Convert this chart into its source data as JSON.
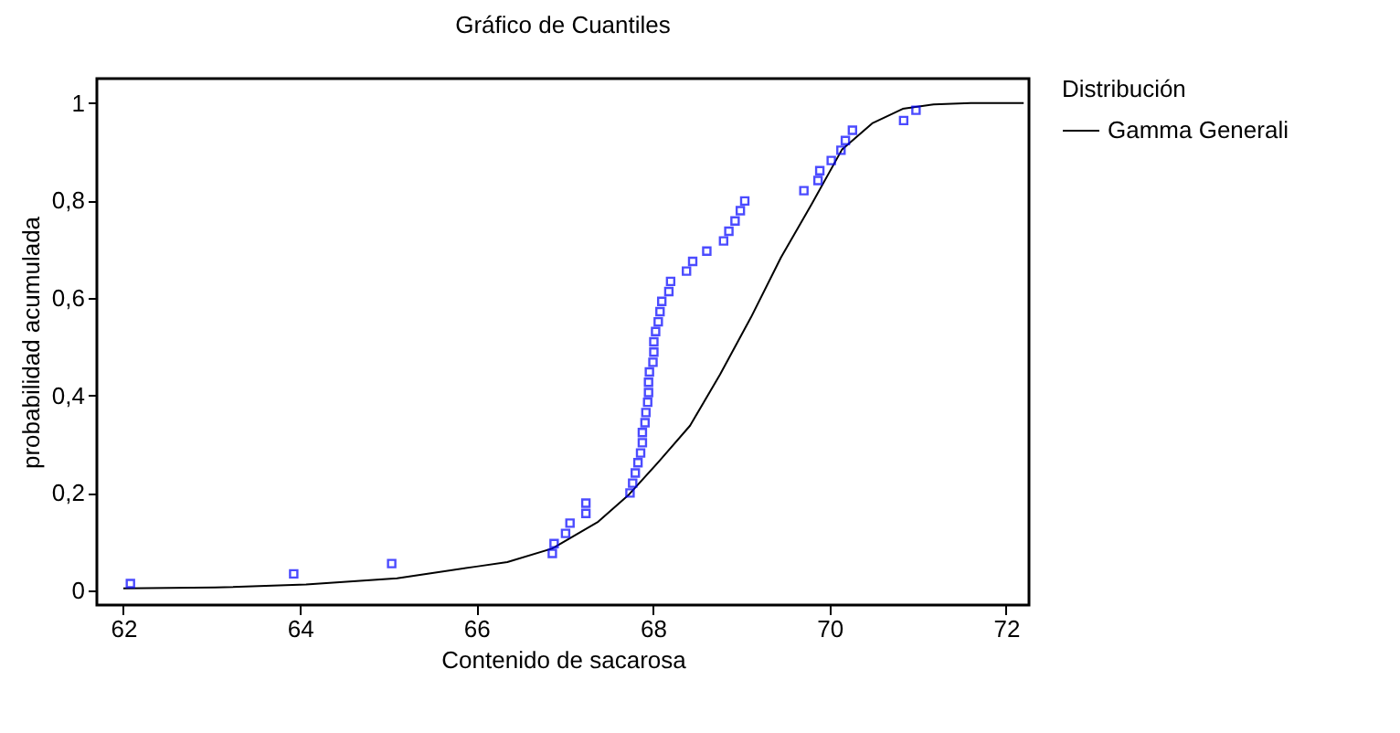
{
  "chart_data": {
    "type": "scatter",
    "title": "Gráfico de Cuantiles",
    "xlabel": "Contenido de sacarosa",
    "ylabel": "probabilidad acumulada",
    "legend_title": "Distribución",
    "legend": "right",
    "grid": false,
    "xlim": [
      61.7,
      72.26
    ],
    "ylim": [
      -0.03,
      1.05
    ],
    "xticks": [
      62,
      64,
      66,
      68,
      70,
      72
    ],
    "yticks": [
      0,
      {
        "value": 0.2,
        "label": "0,2"
      },
      {
        "value": 0.4,
        "label": "0,4"
      },
      {
        "value": 0.6,
        "label": "0,6"
      },
      {
        "value": 0.8,
        "label": "0,8"
      },
      1
    ],
    "series": [
      {
        "name": "Gamma Generali",
        "type": "line",
        "color": "#000000",
        "line_style": "solid",
        "marker": "none",
        "x": [
          62,
          63.04,
          64.07,
          65.1,
          66,
          66.35,
          66.86,
          67.38,
          67.73,
          68.07,
          68.42,
          68.76,
          69.11,
          69.45,
          69.8,
          70.14,
          70.49,
          70.83,
          71.18,
          71.6,
          72.2
        ],
        "values": [
          0.004,
          0.006,
          0.012,
          0.025,
          0.049,
          0.058,
          0.086,
          0.141,
          0.197,
          0.265,
          0.338,
          0.443,
          0.56,
          0.683,
          0.793,
          0.904,
          0.959,
          0.988,
          0.997,
          1.0,
          1.0
        ]
      },
      {
        "color": "#0000ff",
        "marker": "square",
        "x": [
          62.08,
          63.93,
          65.04,
          66.86,
          66.88,
          67.01,
          67.06,
          67.24,
          67.24,
          67.74,
          67.77,
          67.8,
          67.83,
          67.86,
          67.88,
          67.88,
          67.91,
          67.92,
          67.94,
          67.95,
          67.95,
          67.96,
          68.0,
          68.01,
          68.01,
          68.03,
          68.06,
          68.08,
          68.1,
          68.18,
          68.2,
          68.38,
          68.45,
          68.61,
          68.8,
          68.86,
          68.93,
          68.99,
          69.04,
          69.71,
          69.87,
          69.89,
          70.02,
          70.13,
          70.18,
          70.26,
          70.84,
          70.98
        ],
        "values": [
          0.014,
          0.034,
          0.055,
          0.076,
          0.096,
          0.117,
          0.138,
          0.158,
          0.179,
          0.2,
          0.22,
          0.241,
          0.262,
          0.282,
          0.303,
          0.324,
          0.344,
          0.365,
          0.386,
          0.406,
          0.427,
          0.448,
          0.468,
          0.489,
          0.51,
          0.531,
          0.551,
          0.572,
          0.593,
          0.613,
          0.634,
          0.655,
          0.675,
          0.696,
          0.717,
          0.737,
          0.758,
          0.779,
          0.799,
          0.82,
          0.841,
          0.861,
          0.882,
          0.903,
          0.923,
          0.944,
          0.964,
          0.985
        ]
      }
    ]
  }
}
